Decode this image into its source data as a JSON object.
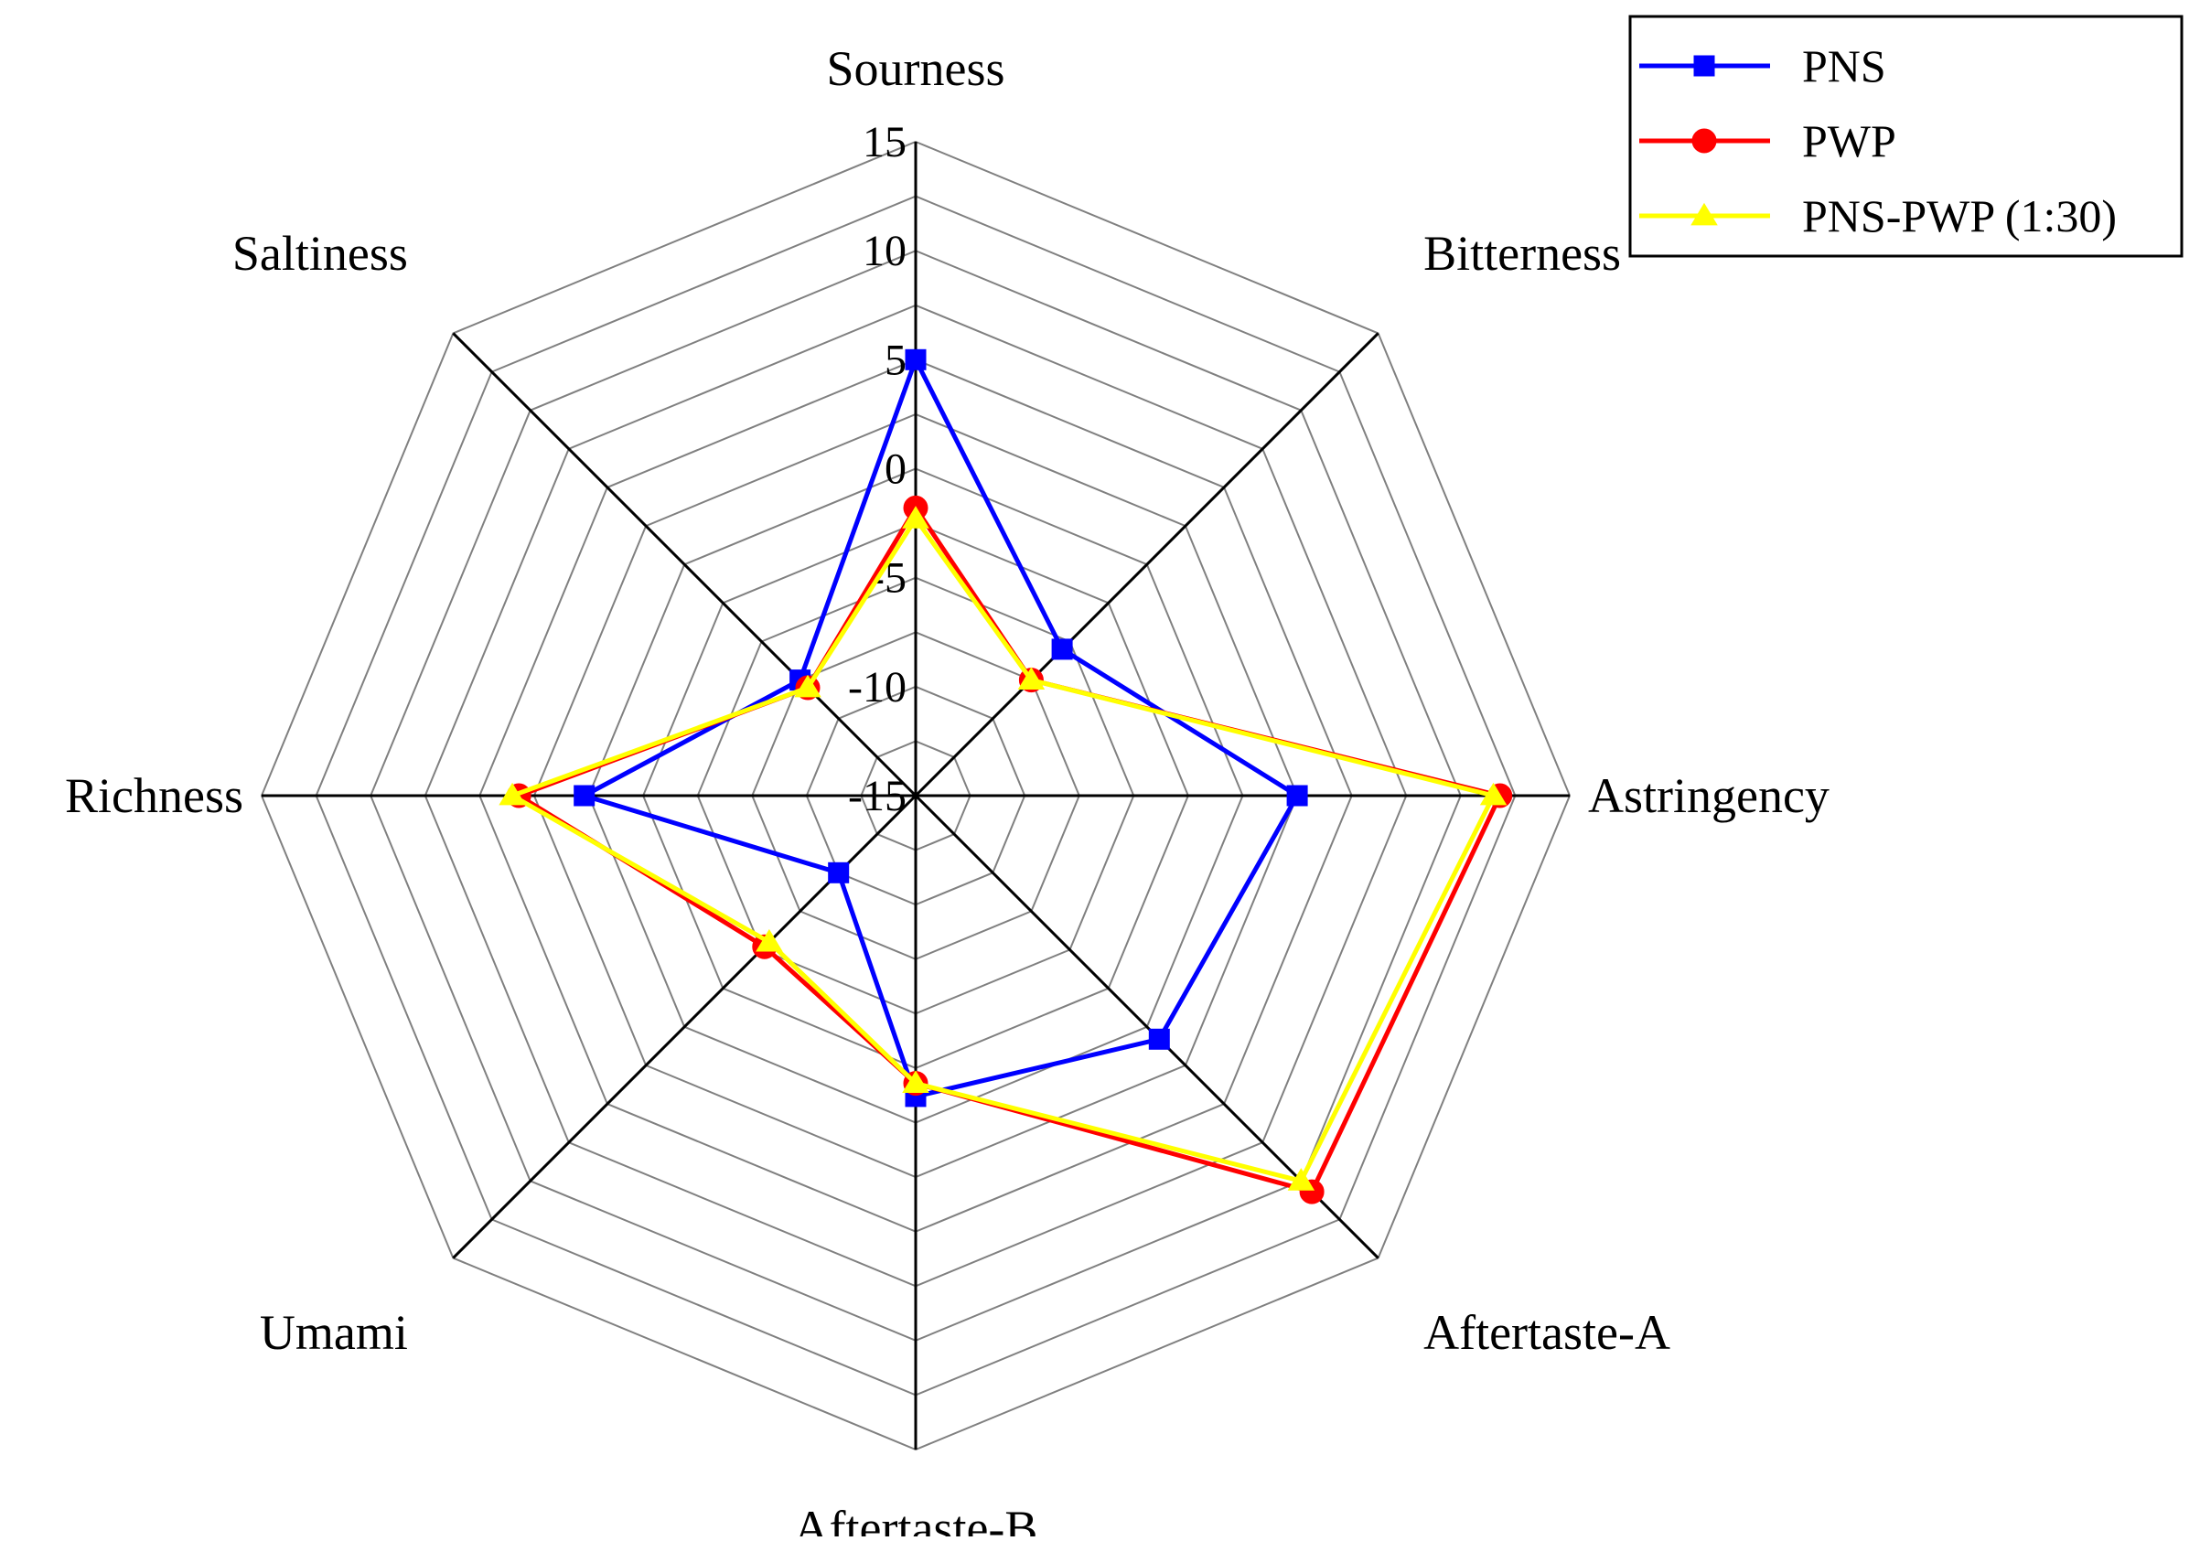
{
  "chart_data": {
    "type": "radar",
    "axes": [
      "Sourness",
      "Bitterness",
      "Astringency",
      "Aftertaste-A",
      "Aftertaste-B",
      "Umami",
      "Richness",
      "Saltiness"
    ],
    "rlim": [
      -15,
      15
    ],
    "ticks": [
      "-15",
      "-10",
      "-5",
      "0",
      "5",
      "10",
      "15"
    ],
    "tick_values": [
      -15,
      -10,
      -5,
      0,
      5,
      10,
      15
    ],
    "grid": true,
    "legend_position": "top-right",
    "series": [
      {
        "name": "PNS",
        "color": "#0000ff",
        "marker": "square",
        "values": [
          5,
          -5.5,
          2.5,
          0.8,
          -1.2,
          -10,
          0.2,
          -7.5
        ]
      },
      {
        "name": "PWP",
        "color": "#ff0000",
        "marker": "circle",
        "values": [
          -1.8,
          -7.5,
          11.8,
          10.7,
          -1.8,
          -5.2,
          3.2,
          -8
        ]
      },
      {
        "name": "PNS-PWP (1:30)",
        "color": "#ffff00",
        "marker": "triangle",
        "values": [
          -2.3,
          -7.5,
          11.5,
          10,
          -1.8,
          -5.5,
          3.5,
          -8
        ]
      }
    ]
  }
}
